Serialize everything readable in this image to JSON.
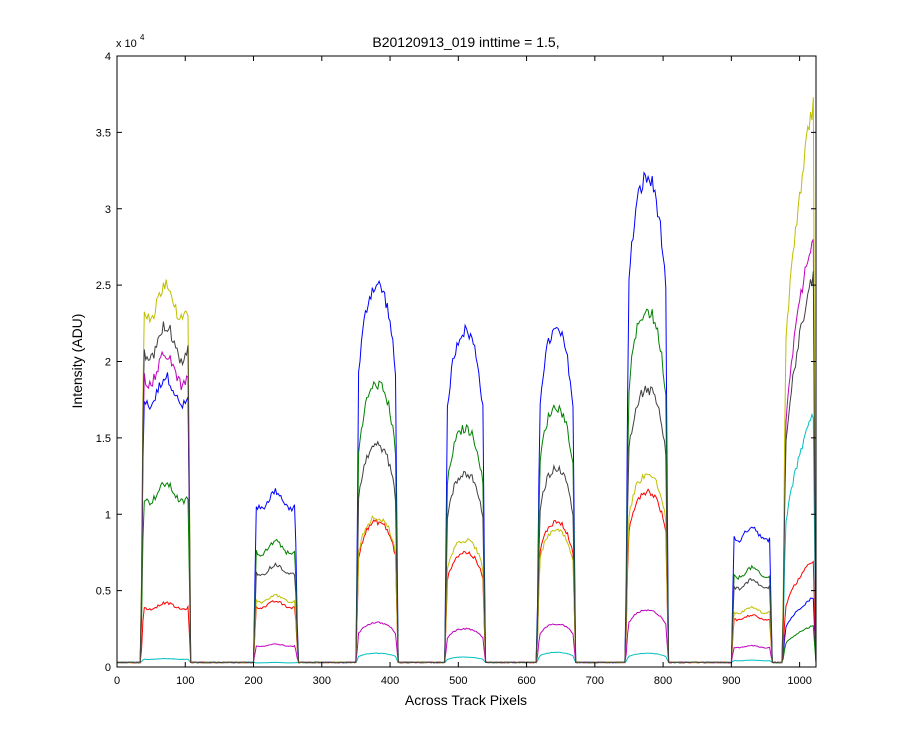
{
  "chart_data": {
    "type": "line",
    "title": "B20120913_019 inttime = 1.5,",
    "xlabel": "Across Track Pixels",
    "ylabel": "Intensity (ADU)",
    "y_exponent_base": "x 10",
    "y_exponent": "4",
    "xlim": [
      0,
      1024
    ],
    "ylim": [
      0,
      40000
    ],
    "x_ticks": [
      0,
      100,
      200,
      300,
      400,
      500,
      600,
      700,
      800,
      900,
      1000
    ],
    "x_tick_labels": [
      "0",
      "100",
      "200",
      "300",
      "400",
      "500",
      "600",
      "700",
      "800",
      "900",
      "1000"
    ],
    "y_ticks": [
      0,
      5000,
      10000,
      15000,
      20000,
      25000,
      30000,
      35000,
      40000
    ],
    "y_tick_labels": [
      "0",
      "0.5",
      "1",
      "1.5",
      "2",
      "2.5",
      "3",
      "3.5",
      "4"
    ],
    "grid": false,
    "baseline": 300,
    "fiber_segments": [
      {
        "start": 35,
        "end": 108
      },
      {
        "start": 200,
        "end": 265
      },
      {
        "start": 350,
        "end": 412
      },
      {
        "start": 480,
        "end": 540
      },
      {
        "start": 615,
        "end": 672
      },
      {
        "start": 745,
        "end": 808
      },
      {
        "start": 900,
        "end": 960
      },
      {
        "start": 975,
        "end": 1024
      }
    ],
    "series": [
      {
        "color": "#0000ff",
        "shapes": [
          "flat",
          "flat",
          "dome",
          "dome",
          "dome",
          "dome",
          "flat",
          "ramp"
        ],
        "values": [
          19000,
          11500,
          25000,
          22000,
          22000,
          32000,
          9200,
          4700
        ]
      },
      {
        "color": "#008000",
        "shapes": [
          "flat",
          "flat",
          "dome",
          "dome",
          "dome",
          "dome",
          "flat",
          "ramp"
        ],
        "values": [
          12000,
          8200,
          18500,
          15600,
          17000,
          23300,
          6500,
          2800
        ]
      },
      {
        "color": "#ff0000",
        "shapes": [
          "flat",
          "flat",
          "dome",
          "dome",
          "dome",
          "dome",
          "flat",
          "ramp"
        ],
        "values": [
          4200,
          4300,
          9500,
          7500,
          9500,
          11500,
          3400,
          7200
        ]
      },
      {
        "color": "#00bfbf",
        "shapes": [
          "flat",
          "flat",
          "dome",
          "dome",
          "dome",
          "dome",
          "flat",
          "ramp"
        ],
        "values": [
          550,
          300,
          900,
          650,
          950,
          900,
          450,
          17000
        ]
      },
      {
        "color": "#bf00bf",
        "shapes": [
          "flat",
          "flat",
          "dome",
          "dome",
          "dome",
          "dome",
          "flat",
          "ramp"
        ],
        "values": [
          20500,
          1500,
          2900,
          2500,
          2800,
          3700,
          1400,
          29300
        ]
      },
      {
        "color": "#bfbf00",
        "shapes": [
          "flat",
          "flat",
          "dome",
          "dome",
          "dome",
          "dome",
          "flat",
          "ramp"
        ],
        "values": [
          25200,
          4700,
          9800,
          8300,
          9000,
          12600,
          3900,
          38000
        ]
      },
      {
        "color": "#404040",
        "shapes": [
          "flat",
          "flat",
          "dome",
          "dome",
          "dome",
          "dome",
          "flat",
          "ramp"
        ],
        "values": [
          22400,
          6700,
          14500,
          12700,
          13000,
          18200,
          5700,
          26500
        ]
      }
    ]
  }
}
